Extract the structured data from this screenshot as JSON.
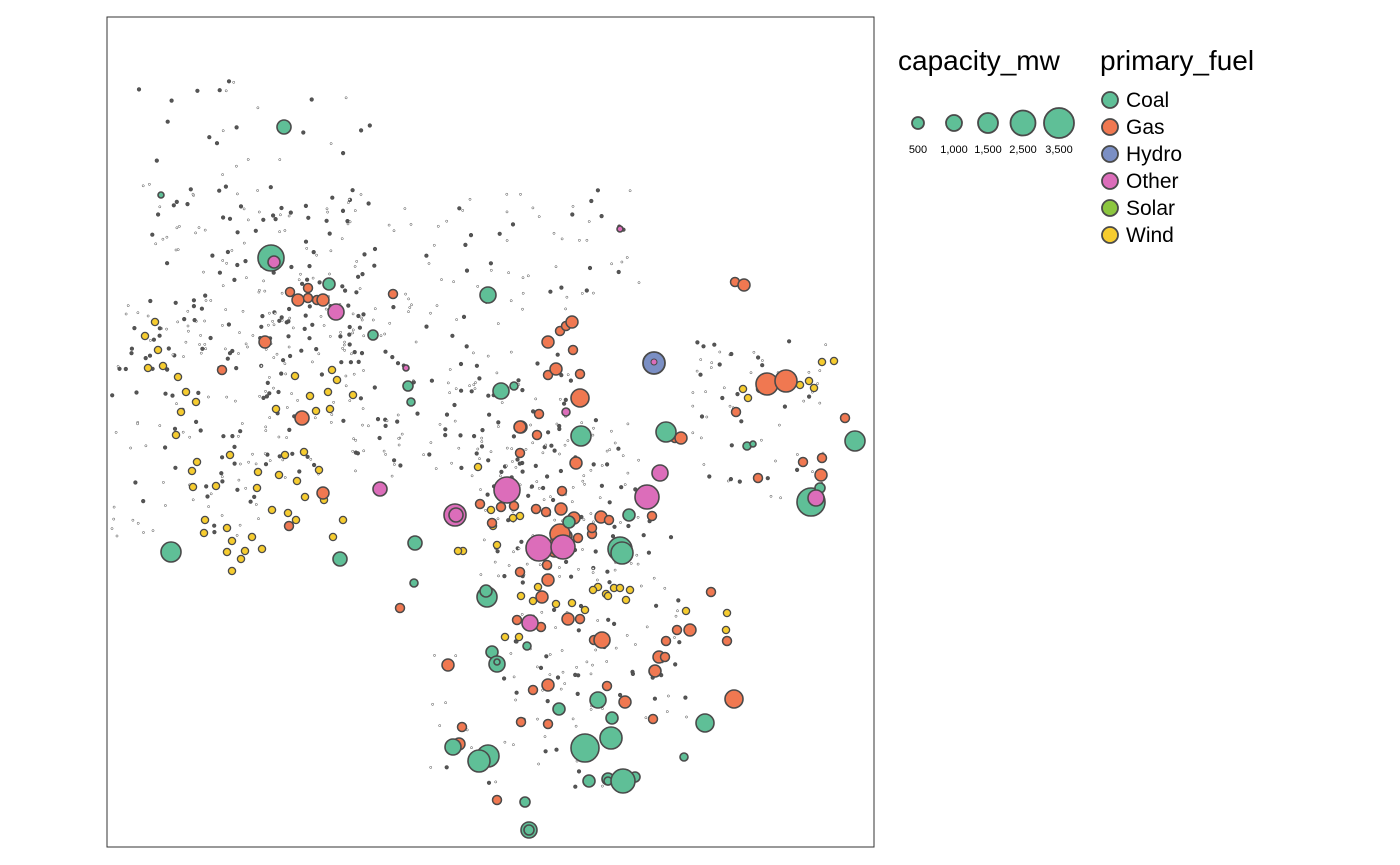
{
  "legend": {
    "size_title": "capacity_mw",
    "fuel_title": "primary_fuel",
    "size_breaks": [
      {
        "label": "500",
        "value": 500
      },
      {
        "label": "1,000",
        "value": 1000
      },
      {
        "label": "1,500",
        "value": 1500
      },
      {
        "label": "2,500",
        "value": 2500
      },
      {
        "label": "3,500",
        "value": 3500
      }
    ],
    "fuels": [
      {
        "key": "coal",
        "label": "Coal",
        "color": "#5fbf97"
      },
      {
        "key": "gas",
        "label": "Gas",
        "color": "#f07851"
      },
      {
        "key": "hydro",
        "label": "Hydro",
        "color": "#7b8fc4"
      },
      {
        "key": "other",
        "label": "Other",
        "color": "#dc6dba"
      },
      {
        "key": "solar",
        "label": "Solar",
        "color": "#8cc63f"
      },
      {
        "key": "wind",
        "label": "Wind",
        "color": "#f6cc2f"
      }
    ],
    "small_fill": "#555555",
    "outline": "#4a4a4a"
  }
}
